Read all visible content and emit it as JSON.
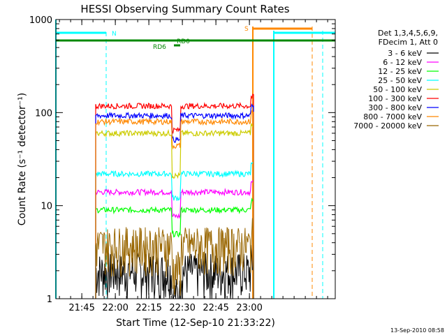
{
  "chart_data": {
    "type": "line",
    "title": "HESSI Observing Summary Count Rates",
    "xlabel": "Start Time (12-Sep-10 21:33:22)",
    "ylabel": "Count Rate (s⁻¹ detector⁻¹)",
    "yscale": "log",
    "ylim": [
      1,
      1000
    ],
    "xlim_minutes": [
      0,
      125
    ],
    "x_ticks": [
      {
        "label": "21:45",
        "min": 11.6
      },
      {
        "label": "22:00",
        "min": 26.6
      },
      {
        "label": "22:15",
        "min": 41.6
      },
      {
        "label": "22:30",
        "min": 56.6
      },
      {
        "label": "22:45",
        "min": 71.6
      },
      {
        "label": "23:00",
        "min": 86.6
      }
    ],
    "y_ticks": [
      {
        "label": "1",
        "value": 1
      },
      {
        "label": "10",
        "value": 10
      },
      {
        "label": "100",
        "value": 100
      },
      {
        "label": "1000",
        "value": 1000
      }
    ],
    "legend_title": [
      "Det 1,3,4,5,6,9,",
      "FDecim 1, Att 0"
    ],
    "series": [
      {
        "name": "3 - 6 keV",
        "color": "#000000",
        "level": 2.0
      },
      {
        "name": "6 - 12 keV",
        "color": "#ff00ff",
        "level": 14
      },
      {
        "name": "12 - 25 keV",
        "color": "#00ff00",
        "level": 9
      },
      {
        "name": "25 - 50 keV",
        "color": "#00ffff",
        "level": 22
      },
      {
        "name": "50 - 100 keV",
        "color": "#cccc00",
        "level": 60
      },
      {
        "name": "100 - 300 keV",
        "color": "#ff0000",
        "level": 118
      },
      {
        "name": "300 - 800 keV",
        "color": "#0000ff",
        "level": 93
      },
      {
        "name": "800 - 7000 keV",
        "color": "#ff8800",
        "level": 80
      },
      {
        "name": "7000 - 20000 keV",
        "color": "#996600",
        "level": 3.8
      }
    ],
    "flags": [
      {
        "label": "N",
        "color": "#00ffff"
      },
      {
        "label": "S",
        "color": "#ff8800"
      },
      {
        "label": "RD0",
        "color": "#008800"
      },
      {
        "label": "RD6",
        "color": "#008800"
      }
    ],
    "timestamp": "13-Sep-2010 08:58"
  }
}
